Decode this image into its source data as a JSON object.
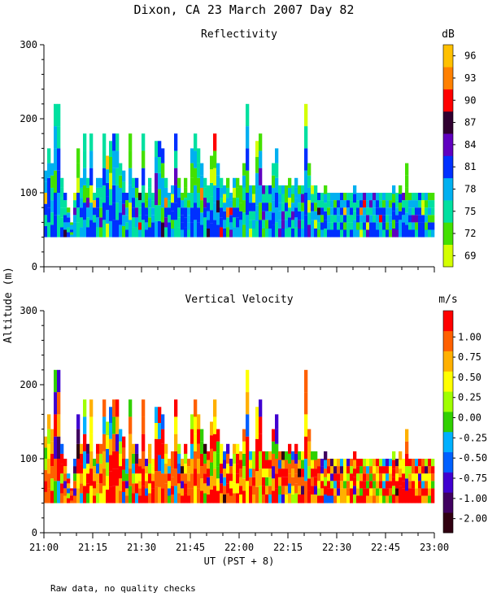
{
  "figure": {
    "title": "Dixon, CA 23 March 2007  Day  82",
    "ylabel": "Altitude (m)",
    "xlabel": "UT  (PST + 8)",
    "footnote": "Raw data, no quality checks"
  },
  "colors": {
    "reflectivity_scale": [
      "#d4ff00",
      "#44e000",
      "#00e0a0",
      "#00b0f0",
      "#0030ff",
      "#6000c0",
      "#300030",
      "#ff0000",
      "#ff8000",
      "#ffc000"
    ],
    "velocity_scale": [
      "#300010",
      "#400060",
      "#4000d0",
      "#0060ff",
      "#00b0ff",
      "#30d000",
      "#a0ff00",
      "#ffff00",
      "#ffb000",
      "#ff6000",
      "#ff0000"
    ]
  },
  "chart_data": [
    {
      "type": "heatmap",
      "title": "Reflectivity",
      "colorbar_unit": "dB",
      "colorbar_ticks": [
        "69",
        "72",
        "75",
        "78",
        "81",
        "84",
        "87",
        "90",
        "93",
        "96"
      ],
      "x_range": [
        "21:00",
        "23:00"
      ],
      "x_ticks": [
        "21:00",
        "21:15",
        "21:30",
        "21:45",
        "22:00",
        "22:15",
        "22:30",
        "22:45",
        "23:00"
      ],
      "ylim": [
        0,
        300
      ],
      "y_ticks": [
        0,
        100,
        200,
        300
      ],
      "data_bottom_m": 40,
      "profile_top_m": [
        [
          0,
          130
        ],
        [
          1,
          160
        ],
        [
          2,
          140
        ],
        [
          3,
          220
        ],
        [
          4,
          220
        ],
        [
          5,
          120
        ],
        [
          6,
          100
        ],
        [
          7,
          80
        ],
        [
          8,
          60
        ],
        [
          9,
          100
        ],
        [
          10,
          160
        ],
        [
          11,
          120
        ],
        [
          12,
          180
        ],
        [
          13,
          120
        ],
        [
          14,
          180
        ],
        [
          15,
          100
        ],
        [
          16,
          120
        ],
        [
          17,
          120
        ],
        [
          18,
          180
        ],
        [
          19,
          150
        ],
        [
          20,
          170
        ],
        [
          21,
          180
        ],
        [
          22,
          180
        ],
        [
          23,
          140
        ],
        [
          24,
          130
        ],
        [
          25,
          100
        ],
        [
          26,
          180
        ],
        [
          27,
          120
        ],
        [
          28,
          120
        ],
        [
          29,
          100
        ],
        [
          30,
          180
        ],
        [
          31,
          100
        ],
        [
          32,
          120
        ],
        [
          33,
          100
        ],
        [
          34,
          170
        ],
        [
          35,
          170
        ],
        [
          36,
          160
        ],
        [
          37,
          120
        ],
        [
          38,
          100
        ],
        [
          39,
          110
        ],
        [
          40,
          180
        ],
        [
          41,
          120
        ],
        [
          42,
          100
        ],
        [
          43,
          120
        ],
        [
          44,
          100
        ],
        [
          45,
          160
        ],
        [
          46,
          180
        ],
        [
          47,
          160
        ],
        [
          48,
          140
        ],
        [
          49,
          120
        ],
        [
          50,
          110
        ],
        [
          51,
          150
        ],
        [
          52,
          180
        ],
        [
          53,
          140
        ],
        [
          54,
          120
        ],
        [
          55,
          110
        ],
        [
          56,
          120
        ],
        [
          57,
          100
        ],
        [
          58,
          120
        ],
        [
          59,
          120
        ],
        [
          60,
          110
        ],
        [
          61,
          140
        ],
        [
          62,
          220
        ],
        [
          63,
          110
        ],
        [
          64,
          110
        ],
        [
          65,
          170
        ],
        [
          66,
          180
        ],
        [
          67,
          110
        ],
        [
          68,
          110
        ],
        [
          69,
          110
        ],
        [
          70,
          140
        ],
        [
          71,
          160
        ],
        [
          72,
          110
        ],
        [
          73,
          110
        ],
        [
          74,
          110
        ],
        [
          75,
          120
        ],
        [
          76,
          110
        ],
        [
          77,
          120
        ],
        [
          78,
          110
        ],
        [
          79,
          110
        ],
        [
          80,
          220
        ],
        [
          81,
          140
        ],
        [
          82,
          110
        ],
        [
          83,
          110
        ],
        [
          84,
          100
        ],
        [
          85,
          100
        ],
        [
          86,
          110
        ],
        [
          87,
          100
        ],
        [
          88,
          100
        ],
        [
          89,
          100
        ],
        [
          90,
          100
        ],
        [
          91,
          100
        ],
        [
          92,
          100
        ],
        [
          93,
          100
        ],
        [
          94,
          100
        ],
        [
          95,
          110
        ],
        [
          96,
          100
        ],
        [
          97,
          100
        ],
        [
          98,
          100
        ],
        [
          99,
          100
        ],
        [
          100,
          100
        ],
        [
          101,
          100
        ],
        [
          102,
          100
        ],
        [
          103,
          100
        ],
        [
          104,
          100
        ],
        [
          105,
          100
        ],
        [
          106,
          100
        ],
        [
          107,
          110
        ],
        [
          108,
          100
        ],
        [
          109,
          110
        ],
        [
          110,
          100
        ],
        [
          111,
          140
        ],
        [
          112,
          100
        ],
        [
          113,
          100
        ],
        [
          114,
          100
        ],
        [
          115,
          100
        ],
        [
          116,
          100
        ],
        [
          117,
          100
        ],
        [
          118,
          100
        ],
        [
          119,
          100
        ]
      ]
    },
    {
      "type": "heatmap",
      "title": "Vertical Velocity",
      "colorbar_unit": "m/s",
      "colorbar_ticks": [
        "-2.00",
        "-1.00",
        "-0.75",
        "-0.50",
        "-0.25",
        "0.00",
        "0.25",
        "0.50",
        "0.75",
        "1.00"
      ],
      "x_range": [
        "21:00",
        "23:00"
      ],
      "x_ticks": [
        "21:00",
        "21:15",
        "21:30",
        "21:45",
        "22:00",
        "22:15",
        "22:30",
        "22:45",
        "23:00"
      ],
      "ylim": [
        0,
        300
      ],
      "y_ticks": [
        0,
        100,
        200,
        300
      ],
      "data_bottom_m": 40,
      "profile_top_m": [
        [
          0,
          130
        ],
        [
          1,
          160
        ],
        [
          2,
          140
        ],
        [
          3,
          220
        ],
        [
          4,
          220
        ],
        [
          5,
          120
        ],
        [
          6,
          100
        ],
        [
          7,
          80
        ],
        [
          8,
          60
        ],
        [
          9,
          100
        ],
        [
          10,
          160
        ],
        [
          11,
          120
        ],
        [
          12,
          180
        ],
        [
          13,
          120
        ],
        [
          14,
          180
        ],
        [
          15,
          100
        ],
        [
          16,
          120
        ],
        [
          17,
          120
        ],
        [
          18,
          180
        ],
        [
          19,
          150
        ],
        [
          20,
          170
        ],
        [
          21,
          180
        ],
        [
          22,
          180
        ],
        [
          23,
          140
        ],
        [
          24,
          130
        ],
        [
          25,
          100
        ],
        [
          26,
          180
        ],
        [
          27,
          120
        ],
        [
          28,
          120
        ],
        [
          29,
          100
        ],
        [
          30,
          180
        ],
        [
          31,
          100
        ],
        [
          32,
          120
        ],
        [
          33,
          100
        ],
        [
          34,
          170
        ],
        [
          35,
          170
        ],
        [
          36,
          160
        ],
        [
          37,
          120
        ],
        [
          38,
          100
        ],
        [
          39,
          110
        ],
        [
          40,
          180
        ],
        [
          41,
          120
        ],
        [
          42,
          100
        ],
        [
          43,
          120
        ],
        [
          44,
          100
        ],
        [
          45,
          160
        ],
        [
          46,
          180
        ],
        [
          47,
          160
        ],
        [
          48,
          140
        ],
        [
          49,
          120
        ],
        [
          50,
          110
        ],
        [
          51,
          150
        ],
        [
          52,
          180
        ],
        [
          53,
          140
        ],
        [
          54,
          120
        ],
        [
          55,
          110
        ],
        [
          56,
          120
        ],
        [
          57,
          100
        ],
        [
          58,
          120
        ],
        [
          59,
          120
        ],
        [
          60,
          110
        ],
        [
          61,
          140
        ],
        [
          62,
          220
        ],
        [
          63,
          110
        ],
        [
          64,
          110
        ],
        [
          65,
          170
        ],
        [
          66,
          180
        ],
        [
          67,
          110
        ],
        [
          68,
          110
        ],
        [
          69,
          110
        ],
        [
          70,
          140
        ],
        [
          71,
          160
        ],
        [
          72,
          110
        ],
        [
          73,
          110
        ],
        [
          74,
          110
        ],
        [
          75,
          120
        ],
        [
          76,
          110
        ],
        [
          77,
          120
        ],
        [
          78,
          110
        ],
        [
          79,
          110
        ],
        [
          80,
          220
        ],
        [
          81,
          140
        ],
        [
          82,
          110
        ],
        [
          83,
          110
        ],
        [
          84,
          100
        ],
        [
          85,
          100
        ],
        [
          86,
          110
        ],
        [
          87,
          100
        ],
        [
          88,
          100
        ],
        [
          89,
          100
        ],
        [
          90,
          100
        ],
        [
          91,
          100
        ],
        [
          92,
          100
        ],
        [
          93,
          100
        ],
        [
          94,
          100
        ],
        [
          95,
          110
        ],
        [
          96,
          100
        ],
        [
          97,
          100
        ],
        [
          98,
          100
        ],
        [
          99,
          100
        ],
        [
          100,
          100
        ],
        [
          101,
          100
        ],
        [
          102,
          100
        ],
        [
          103,
          100
        ],
        [
          104,
          100
        ],
        [
          105,
          100
        ],
        [
          106,
          100
        ],
        [
          107,
          110
        ],
        [
          108,
          100
        ],
        [
          109,
          110
        ],
        [
          110,
          100
        ],
        [
          111,
          140
        ],
        [
          112,
          100
        ],
        [
          113,
          100
        ],
        [
          114,
          100
        ],
        [
          115,
          100
        ],
        [
          116,
          100
        ],
        [
          117,
          100
        ],
        [
          118,
          100
        ],
        [
          119,
          100
        ]
      ]
    }
  ]
}
